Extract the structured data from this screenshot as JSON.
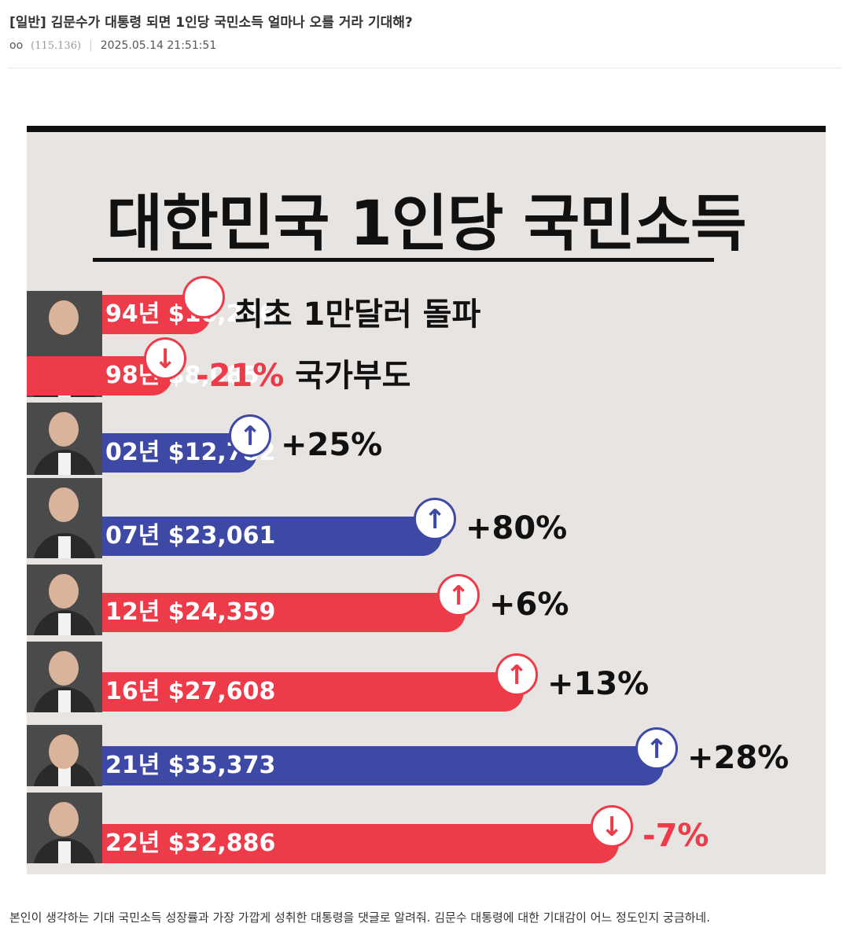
{
  "post": {
    "title": "[일반] 김문수가 대통령 되면 1인당 국민소득 얼마나 오를 거라 기대해?",
    "author": "oo",
    "ip": "(115.136)",
    "separator": "|",
    "timestamp": "2025.05.14 21:51:51",
    "body": "본인이 생각하는 기대 국민소득 성장률과 가장 가깝게 성취한 대통령을 댓글로 알려줘. 김문수 대통령에 대한 기대감이 어느 정도인지 궁금하네."
  },
  "chart_data": {
    "type": "bar",
    "title": "대한민국 1인당 국민소득",
    "categories": [
      "94년",
      "98년",
      "02년",
      "07년",
      "12년",
      "16년",
      "21년",
      "22년"
    ],
    "values": [
      10206,
      8085,
      12782,
      23061,
      24359,
      27608,
      35373,
      32886
    ],
    "value_labels": [
      "$10,206",
      "$8,085",
      "$12,782",
      "$23,061",
      "$24,359",
      "$27,608",
      "$35,373",
      "$32,886"
    ],
    "bar_text": [
      "94년 $10,206",
      "98년 $8,085",
      "02년 $12,782",
      "07년 $23,061",
      "12년 $24,359",
      "16년 $27,608",
      "21년 $35,373",
      "22년 $32,886"
    ],
    "bar_colors": [
      "#ee3b4a",
      "#ee3b4a",
      "#3e49a6",
      "#3e49a6",
      "#ee3b4a",
      "#ee3b4a",
      "#3e49a6",
      "#ee3b4a"
    ],
    "indicators": [
      "circle",
      "down",
      "up",
      "up",
      "up",
      "up",
      "up",
      "down"
    ],
    "change_labels": [
      "",
      "-21%",
      "+25%",
      "+80%",
      "+6%",
      "+13%",
      "+28%",
      "-7%"
    ],
    "annotations": [
      "최초 1만달러 돌파",
      "국가부도",
      "",
      "",
      "",
      "",
      "",
      ""
    ]
  },
  "colors": {
    "red": "#ee3b4a",
    "blue": "#3e49a6",
    "background": "#e7e4e1"
  }
}
